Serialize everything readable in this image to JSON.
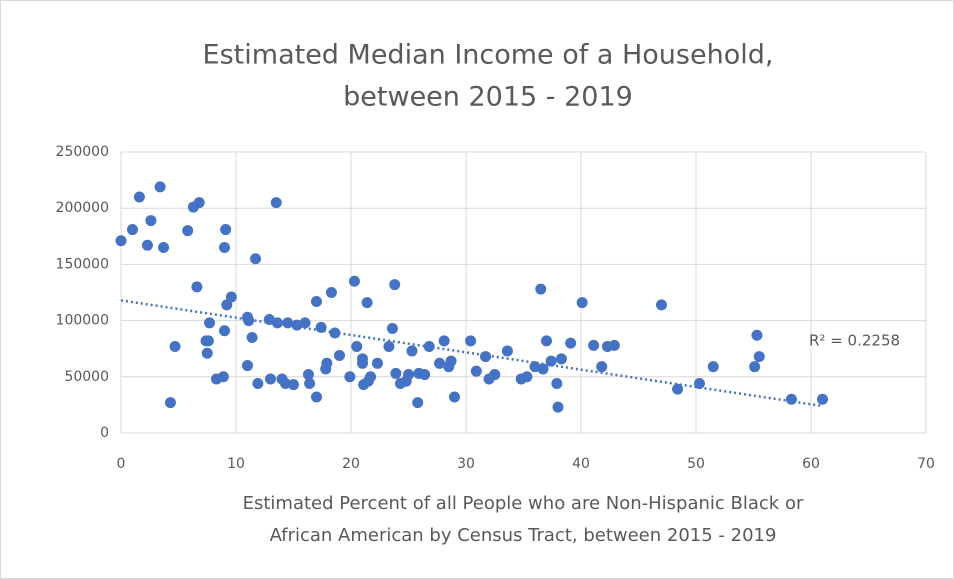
{
  "chart_data": {
    "type": "scatter",
    "title": [
      "Estimated Median Income of a Household,",
      "between 2015 - 2019"
    ],
    "x_label": [
      "Estimated Percent of all People who are Non-Hispanic Black or",
      "African American by Census Tract, between  2015 - 2019"
    ],
    "color": "#4472c4",
    "grid": true,
    "xlim": [
      0,
      70
    ],
    "xticks": [
      0,
      10,
      20,
      30,
      40,
      50,
      60,
      70
    ],
    "ylim": [
      0,
      250000
    ],
    "yticks": [
      0,
      50000,
      100000,
      150000,
      200000,
      250000
    ],
    "x": [
      0,
      1,
      1.6,
      2.3,
      2.6,
      3.4,
      3.7,
      4.3,
      4.7,
      5.8,
      6.3,
      6.8,
      6.6,
      7.4,
      7.5,
      7.7,
      7.6,
      8.3,
      8.9,
      9.0,
      9.0,
      9.1,
      9.2,
      9.6,
      11,
      11,
      11.1,
      11.4,
      11.7,
      11.9,
      12.9,
      13,
      13.5,
      13.6,
      14,
      14.3,
      14.5,
      15,
      15.3,
      16,
      16.3,
      16.4,
      17,
      17,
      17.4,
      17.8,
      17.9,
      18.3,
      18.6,
      19,
      19.9,
      20.3,
      20.5,
      21,
      21,
      21.1,
      21.4,
      21.7,
      21.5,
      22.3,
      23.3,
      23.6,
      23.8,
      23.9,
      24.3,
      24.8,
      25,
      25.3,
      25.8,
      25.9,
      26.4,
      26.8,
      27.7,
      28.1,
      28.5,
      28.7,
      29,
      30.4,
      30.9,
      31.7,
      32,
      32.5,
      33.6,
      34.8,
      35.3,
      36,
      36.5,
      36.7,
      37,
      37.4,
      37.9,
      38,
      38.3,
      39.1,
      40.1,
      41.1,
      41.8,
      42.3,
      42.9,
      47,
      48.4,
      50.3,
      51.5,
      55.1,
      55.3,
      55.5,
      58.3,
      61
    ],
    "values": [
      171000,
      181000,
      210000,
      167000,
      189000,
      219000,
      165000,
      27000,
      77000,
      180000,
      201000,
      205000,
      130000,
      82000,
      71000,
      98000,
      82000,
      48000,
      50000,
      91000,
      165000,
      181000,
      114000,
      121000,
      60000,
      103000,
      100000,
      85000,
      155000,
      44000,
      101000,
      48000,
      205000,
      98000,
      48000,
      44000,
      98000,
      43000,
      96000,
      98000,
      52000,
      44000,
      32000,
      117000,
      94000,
      57000,
      62000,
      125000,
      89000,
      69000,
      50000,
      135000,
      77000,
      66000,
      62000,
      43000,
      116000,
      50000,
      46000,
      62000,
      77000,
      93000,
      132000,
      53000,
      44000,
      46000,
      52000,
      73000,
      27000,
      53000,
      52000,
      77000,
      62000,
      82000,
      59000,
      64000,
      32000,
      82000,
      55000,
      68000,
      48000,
      52000,
      73000,
      48000,
      50000,
      59000,
      128000,
      57000,
      82000,
      64000,
      44000,
      23000,
      66000,
      80000,
      116000,
      78000,
      59000,
      77000,
      78000,
      114000,
      39000,
      44000,
      59000,
      59000,
      87000,
      68000,
      30000,
      30000
    ],
    "trendline": {
      "x": [
        0,
        61
      ],
      "values": [
        118000,
        24000
      ],
      "annotation": "R² = 0.2258"
    }
  }
}
